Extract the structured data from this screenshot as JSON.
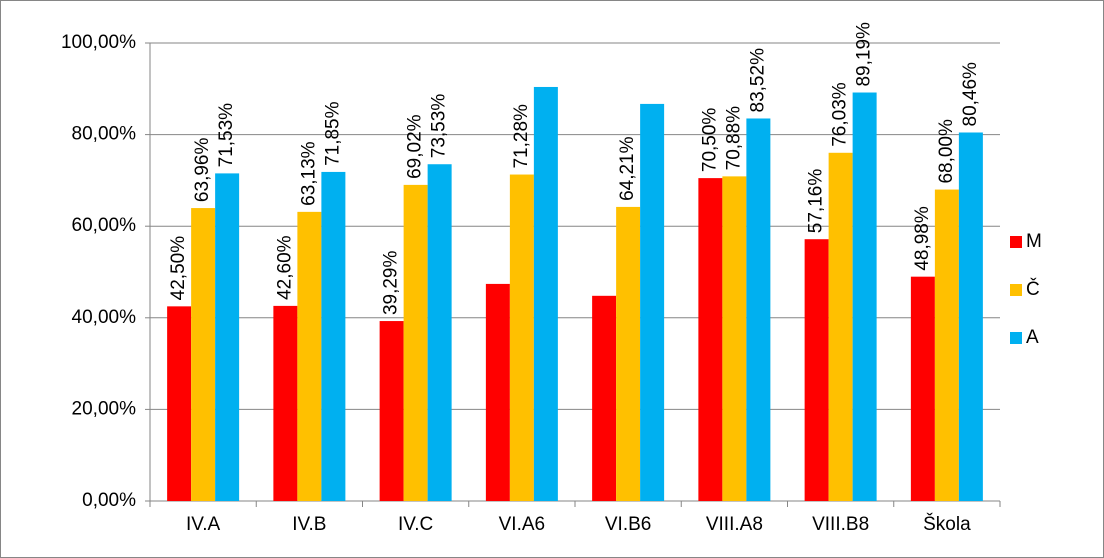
{
  "chart_data": {
    "type": "bar",
    "categories": [
      "IV.A",
      "IV.B",
      "IV.C",
      "VI.A6",
      "VI.B6",
      "VIII.A8",
      "VIII.B8",
      "Škola"
    ],
    "series": [
      {
        "name": "M",
        "color": "#ff0000",
        "values": [
          42.5,
          42.6,
          39.29,
          47.4,
          44.8,
          70.5,
          57.16,
          48.98
        ],
        "value_labels": [
          "42,50%",
          "42,60%",
          "39,29%",
          null,
          null,
          "70,50%",
          "57,16%",
          "48,98%"
        ]
      },
      {
        "name": "Č",
        "color": "#ffc000",
        "values": [
          63.96,
          63.13,
          69.02,
          71.28,
          64.21,
          70.88,
          76.03,
          68.0
        ],
        "value_labels": [
          "63,96%",
          "63,13%",
          "69,02%",
          "71,28%",
          "64,21%",
          "70,88%",
          "76,03%",
          "68,00%"
        ]
      },
      {
        "name": "A",
        "color": "#00b0f0",
        "values": [
          71.53,
          71.85,
          73.53,
          90.4,
          86.7,
          83.52,
          89.19,
          80.46
        ],
        "value_labels": [
          "71,53%",
          "71,85%",
          "73,53%",
          null,
          null,
          "83,52%",
          "89,19%",
          "80,46%"
        ]
      }
    ],
    "ylim": [
      0,
      100
    ],
    "yticks": [
      {
        "value": 0,
        "label": "0,00%"
      },
      {
        "value": 20,
        "label": "20,00%"
      },
      {
        "value": 40,
        "label": "40,00%"
      },
      {
        "value": 60,
        "label": "60,00%"
      },
      {
        "value": 80,
        "label": "80,00%"
      },
      {
        "value": 100,
        "label": "100,00%"
      }
    ],
    "grid": true,
    "legend": "right"
  }
}
